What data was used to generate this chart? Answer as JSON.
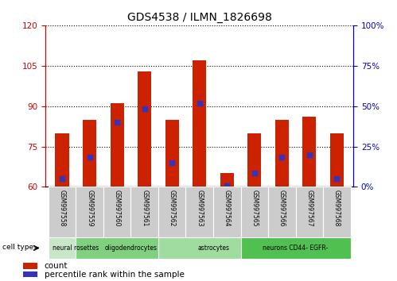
{
  "title": "GDS4538 / ILMN_1826698",
  "samples": [
    "GSM997558",
    "GSM997559",
    "GSM997560",
    "GSM997561",
    "GSM997562",
    "GSM997563",
    "GSM997564",
    "GSM997565",
    "GSM997566",
    "GSM997567",
    "GSM997568"
  ],
  "bar_values": [
    80.0,
    85.0,
    91.0,
    103.0,
    85.0,
    107.0,
    65.0,
    80.0,
    85.0,
    86.0,
    80.0
  ],
  "percentile_values": [
    63.0,
    71.0,
    84.0,
    89.0,
    69.0,
    91.0,
    60.5,
    65.0,
    71.0,
    72.0,
    63.0
  ],
  "y_min": 60,
  "y_max": 120,
  "bar_color": "#cc2200",
  "dot_color": "#3333bb",
  "cell_type_groups": [
    {
      "label": "neural rosettes",
      "start": 0,
      "end": 1,
      "color": "#c8e6c8"
    },
    {
      "label": "oligodendrocytes",
      "start": 1,
      "end": 4,
      "color": "#80d080"
    },
    {
      "label": "astrocytes",
      "start": 4,
      "end": 7,
      "color": "#a0dca0"
    },
    {
      "label": "neurons CD44- EGFR-",
      "start": 7,
      "end": 10,
      "color": "#50c050"
    }
  ],
  "left_axis_color": "#cc0000",
  "right_axis_color": "#0000cc",
  "background_color": "#ffffff",
  "label_bg_color": "#cccccc",
  "yticks": [
    60,
    75,
    90,
    105,
    120
  ],
  "right_pct_ticks": [
    0,
    25,
    50,
    75,
    100
  ]
}
